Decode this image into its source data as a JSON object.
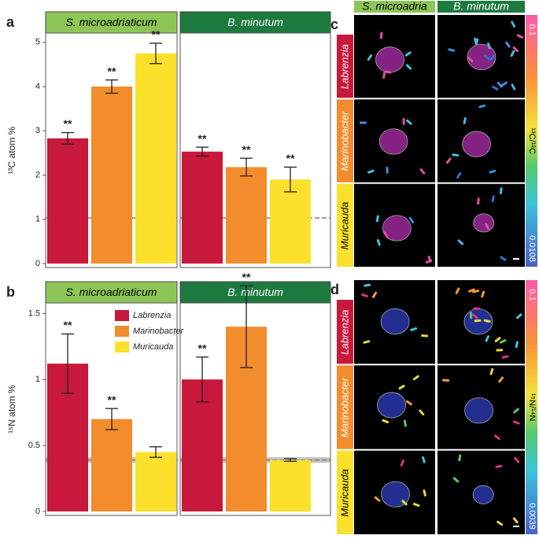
{
  "chart_data": [
    {
      "type": "bar",
      "panel_label": "a",
      "ylabel": "¹³C atom %",
      "ylim": [
        -0.09,
        5.21
      ],
      "yticks": [
        0,
        1,
        2,
        3,
        4,
        5
      ],
      "colors": [
        "#c8183b",
        "#f28c2c",
        "#fbe02c"
      ],
      "reference_line": 1.03,
      "facets": [
        {
          "title": "S. microadriaticum",
          "header_color": "#8dc657",
          "values": [
            2.83,
            4.0,
            4.75
          ],
          "errors": [
            0.13,
            0.15,
            0.23
          ],
          "annotations": [
            "**",
            "**",
            "**"
          ]
        },
        {
          "title": "B. minutum",
          "header_color": "#1d7a3f",
          "values": [
            2.53,
            2.18,
            1.9
          ],
          "errors": [
            0.1,
            0.2,
            0.28
          ],
          "annotations": [
            "**",
            "**",
            "**"
          ]
        }
      ]
    },
    {
      "type": "bar",
      "panel_label": "b",
      "ylabel": "¹⁵N atom %",
      "ylim": [
        -0.03,
        1.58
      ],
      "yticks": [
        0,
        0.5,
        1,
        1.5
      ],
      "colors": [
        "#c8183b",
        "#f28c2c",
        "#fbe02c"
      ],
      "legend": [
        "Labrenzia",
        "Marinobacter",
        "Muricauda"
      ],
      "reference_line": 0.39,
      "facets": [
        {
          "title": "S. microadriaticum",
          "header_color": "#8dc657",
          "values": [
            1.12,
            0.7,
            0.45
          ],
          "errors": [
            0.225,
            0.08,
            0.04
          ],
          "annotations": [
            "**",
            "**",
            null
          ]
        },
        {
          "title": "B. minutum",
          "header_color": "#1d7a3f",
          "values": [
            1.0,
            1.4,
            0.39
          ],
          "errors": [
            0.17,
            0.31,
            0.01
          ],
          "annotations": [
            "**",
            "**",
            null
          ]
        }
      ]
    }
  ],
  "image_panels": [
    {
      "label": "c",
      "columns": [
        "S. microadria",
        "B. minutum"
      ],
      "rows": [
        "Labrenzia",
        "Marinobacter",
        "Muricauda"
      ],
      "colorbar_label": "¹³C/¹²C",
      "colorbar_limits": [
        0.0108,
        0.1
      ]
    },
    {
      "label": "d",
      "rows": [
        "Labrenzia",
        "Marinobacter",
        "Muricauda"
      ],
      "colorbar_label": "¹⁵N/¹⁴N",
      "colorbar_limits": [
        0.0039,
        0.1
      ]
    }
  ]
}
